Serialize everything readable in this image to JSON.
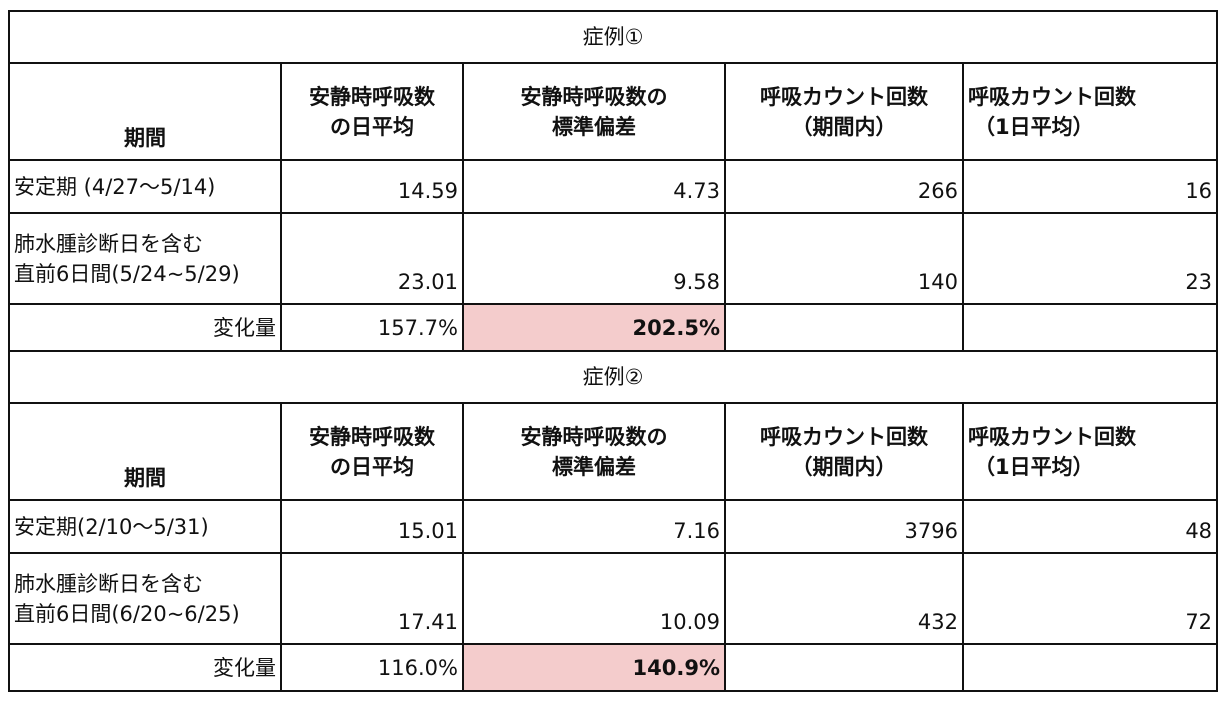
{
  "headers": {
    "period": "期間",
    "avg_l1": "安静時呼吸数",
    "avg_l2": "の日平均",
    "sd_l1": "安静時呼吸数の",
    "sd_l2": "標準偏差",
    "count_l1": "呼吸カウント回数",
    "count_l2": "（期間内）",
    "daily_l1": "呼吸カウント回数",
    "daily_l2": "（1日平均）"
  },
  "cases": [
    {
      "title": "症例①",
      "stable": {
        "label": "安定期 (4/27〜5/14)",
        "avg": "14.59",
        "sd": "4.73",
        "count": "266",
        "daily": "16"
      },
      "pre": {
        "label_l1": "肺水腫診断日を含む",
        "label_l2": "直前6日間(5/24~5/29)",
        "avg": "23.01",
        "sd": "9.58",
        "count": "140",
        "daily": "23"
      },
      "change": {
        "label": "変化量",
        "avg": "157.7%",
        "sd": "202.5%"
      }
    },
    {
      "title": "症例②",
      "stable": {
        "label": "安定期(2/10〜5/31)",
        "avg": "15.01",
        "sd": "7.16",
        "count": "3796",
        "daily": "48"
      },
      "pre": {
        "label_l1": "肺水腫診断日を含む",
        "label_l2": "直前6日間(6/20~6/25)",
        "avg": "17.41",
        "sd": "10.09",
        "count": "432",
        "daily": "72"
      },
      "change": {
        "label": "変化量",
        "avg": "116.0%",
        "sd": "140.9%"
      }
    }
  ],
  "colors": {
    "highlight": "#f4cccc",
    "border": "#111111"
  }
}
